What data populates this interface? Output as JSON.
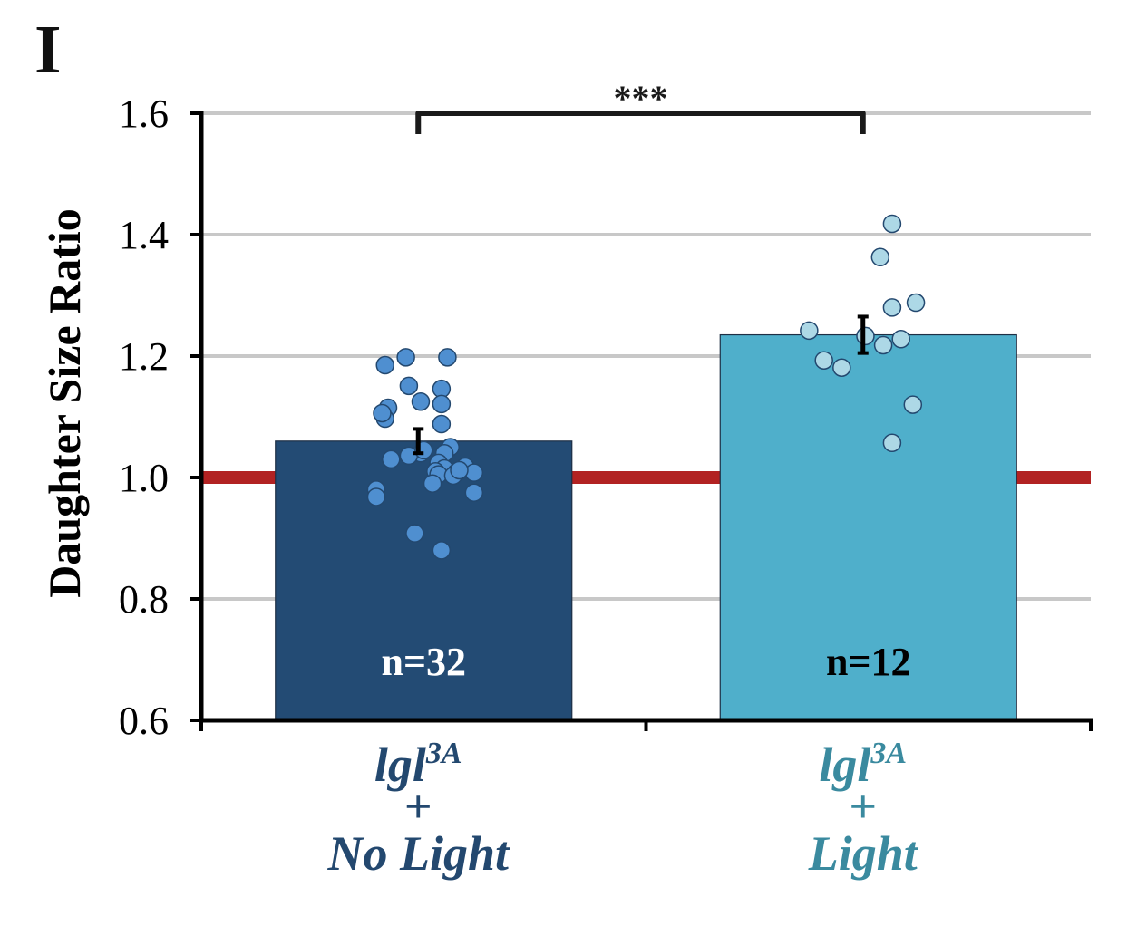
{
  "panel_label": "I",
  "chart_data": {
    "type": "bar",
    "ylabel": "Daughter Size Ratio",
    "ylim": [
      0.6,
      1.6
    ],
    "y_ticks": [
      "0.6",
      "0.8",
      "1.0",
      "1.2",
      "1.4",
      "1.6"
    ],
    "grid": true,
    "reference_line": {
      "value": 1.0,
      "color": "#b22222"
    },
    "significance": {
      "label": "***",
      "between": [
        0,
        1
      ]
    },
    "categories": [
      {
        "gene": "lgl",
        "superscript": "3A",
        "plus": "+",
        "condition": "No Light",
        "label_color": "#23486f"
      },
      {
        "gene": "lgl",
        "superscript": "3A",
        "plus": "+",
        "condition": "Light",
        "label_color": "#3a8a9f"
      }
    ],
    "series": [
      {
        "value": 1.06,
        "error": 0.02,
        "n_label": "n=32",
        "n_label_color": "#ffffff",
        "bar_color": "#234b74",
        "dot_color": "#4f8fd0",
        "points": [
          {
            "jit": -0.13,
            "y": 1.185
          },
          {
            "jit": -0.06,
            "y": 1.198
          },
          {
            "jit": 0.08,
            "y": 1.198
          },
          {
            "jit": -0.05,
            "y": 1.151
          },
          {
            "jit": 0.06,
            "y": 1.146
          },
          {
            "jit": -0.01,
            "y": 1.125
          },
          {
            "jit": 0.06,
            "y": 1.121
          },
          {
            "jit": -0.12,
            "y": 1.115
          },
          {
            "jit": -0.13,
            "y": 1.097
          },
          {
            "jit": -0.14,
            "y": 1.106
          },
          {
            "jit": 0.06,
            "y": 1.088
          },
          {
            "jit": 0.09,
            "y": 1.05
          },
          {
            "jit": 0.07,
            "y": 1.04
          },
          {
            "jit": -0.01,
            "y": 1.04
          },
          {
            "jit": -0.05,
            "y": 1.036
          },
          {
            "jit": -0.11,
            "y": 1.03
          },
          {
            "jit": 0.05,
            "y": 1.024
          },
          {
            "jit": 0.14,
            "y": 1.018
          },
          {
            "jit": 0.07,
            "y": 1.015
          },
          {
            "jit": 0.04,
            "y": 1.01
          },
          {
            "jit": 0.11,
            "y": 1.008
          },
          {
            "jit": 0.17,
            "y": 1.008
          },
          {
            "jit": 0.05,
            "y": 1.005
          },
          {
            "jit": 0.1,
            "y": 1.003
          },
          {
            "jit": 0.03,
            "y": 0.99
          },
          {
            "jit": -0.16,
            "y": 0.98
          },
          {
            "jit": 0.17,
            "y": 0.975
          },
          {
            "jit": -0.16,
            "y": 0.968
          },
          {
            "jit": -0.03,
            "y": 0.908
          },
          {
            "jit": 0.06,
            "y": 0.88
          },
          {
            "jit": 0.0,
            "y": 1.045
          },
          {
            "jit": 0.12,
            "y": 1.012
          }
        ]
      },
      {
        "value": 1.235,
        "error": 0.03,
        "n_label": "n=12",
        "n_label_color": "#000000",
        "bar_color": "#4fafcb",
        "dot_color": "#add8e6",
        "points": [
          {
            "jit": 0.08,
            "y": 1.418
          },
          {
            "jit": 0.04,
            "y": 1.363
          },
          {
            "jit": 0.16,
            "y": 1.288
          },
          {
            "jit": 0.08,
            "y": 1.28
          },
          {
            "jit": -0.2,
            "y": 1.242
          },
          {
            "jit": -0.01,
            "y": 1.233
          },
          {
            "jit": 0.11,
            "y": 1.228
          },
          {
            "jit": 0.05,
            "y": 1.218
          },
          {
            "jit": -0.15,
            "y": 1.193
          },
          {
            "jit": -0.09,
            "y": 1.181
          },
          {
            "jit": 0.15,
            "y": 1.12
          },
          {
            "jit": 0.08,
            "y": 1.057
          }
        ]
      }
    ]
  }
}
